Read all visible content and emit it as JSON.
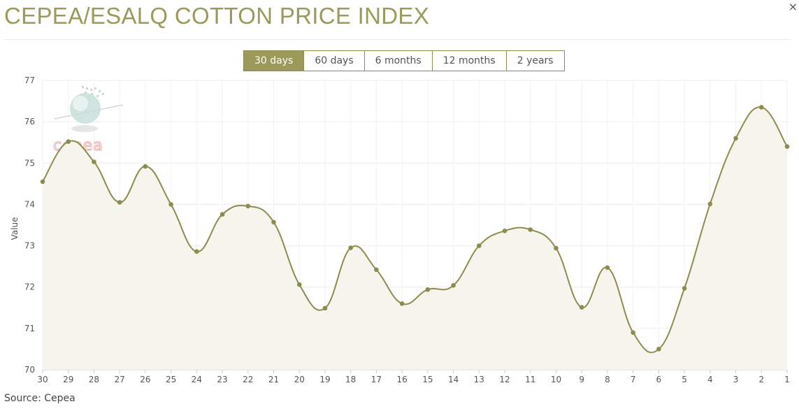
{
  "title": "CEPEA/ESALQ COTTON PRICE INDEX",
  "close_label": "×",
  "tabs": [
    {
      "label": "30 days",
      "active": true
    },
    {
      "label": "60 days",
      "active": false
    },
    {
      "label": "6 months",
      "active": false
    },
    {
      "label": "12 months",
      "active": false
    },
    {
      "label": "2 years",
      "active": false
    }
  ],
  "watermark": "cepea",
  "source": "Source: Cepea",
  "colors": {
    "accent": "#9b9a5a",
    "line": "#8d8c4e",
    "area": "#f5f5ed"
  },
  "chart_data": {
    "type": "line",
    "ylabel": "Value",
    "ylim": [
      70,
      77
    ],
    "yticks": [
      70,
      71,
      72,
      73,
      74,
      75,
      76,
      77
    ],
    "grid": true,
    "categories": [
      "30",
      "29",
      "28",
      "27",
      "26",
      "25",
      "24",
      "23",
      "22",
      "21",
      "20",
      "19",
      "18",
      "17",
      "16",
      "15",
      "14",
      "13",
      "12",
      "11",
      "10",
      "9",
      "8",
      "7",
      "6",
      "5",
      "4",
      "3",
      "2",
      "1"
    ],
    "values": [
      74.55,
      75.52,
      75.03,
      74.05,
      74.92,
      74.0,
      72.86,
      73.76,
      73.96,
      73.57,
      72.06,
      71.49,
      72.95,
      72.42,
      71.6,
      71.94,
      72.04,
      73.0,
      73.36,
      73.39,
      72.94,
      71.51,
      72.47,
      70.9,
      70.5,
      71.97,
      74.01,
      75.6,
      76.35,
      75.4
    ]
  }
}
